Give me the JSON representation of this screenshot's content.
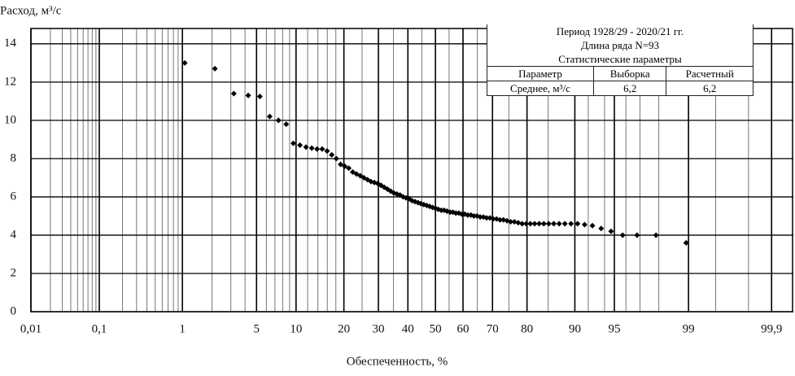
{
  "chart_data": {
    "type": "scatter",
    "ylabel": "Расход, м³/с",
    "xlabel": "Обеспеченность, %",
    "xscale": "probability",
    "xlim": [
      0.01,
      99.95
    ],
    "ylim": [
      0,
      14.8
    ],
    "xticks": [
      {
        "value": 0.01,
        "label": "0,01"
      },
      {
        "value": 0.1,
        "label": "0,1"
      },
      1,
      5,
      10,
      20,
      30,
      40,
      50,
      60,
      70,
      80,
      90,
      95,
      99,
      {
        "value": 99.9,
        "label": "99,9"
      }
    ],
    "xminor": [
      0.02,
      0.03,
      0.04,
      0.05,
      0.06,
      0.07,
      0.08,
      0.09,
      0.2,
      0.3,
      0.4,
      0.5,
      0.6,
      0.7,
      0.8,
      0.9,
      2,
      3,
      4,
      6,
      7,
      8,
      9,
      12,
      14,
      16,
      18,
      25,
      35,
      45,
      55,
      65,
      75,
      85,
      92,
      94,
      96,
      97,
      98,
      99.5,
      99.8
    ],
    "yticks": [
      0,
      2,
      4,
      6,
      8,
      10,
      12,
      14
    ],
    "grid": true,
    "color": "#000000",
    "x": [
      1.06,
      2.13,
      3.19,
      4.26,
      5.32,
      6.38,
      7.45,
      8.51,
      9.57,
      10.64,
      11.7,
      12.77,
      13.83,
      14.89,
      15.96,
      17.02,
      18.09,
      19.15,
      20.21,
      21.28,
      22.34,
      23.4,
      24.47,
      25.53,
      26.6,
      27.66,
      28.72,
      29.79,
      30.85,
      31.91,
      32.98,
      34.04,
      35.11,
      36.17,
      37.23,
      38.3,
      39.36,
      40.43,
      41.49,
      42.55,
      43.62,
      44.68,
      45.74,
      46.81,
      47.87,
      48.94,
      50.0,
      51.06,
      52.13,
      53.19,
      54.26,
      55.32,
      56.38,
      57.45,
      58.51,
      59.57,
      60.64,
      61.7,
      62.77,
      63.83,
      64.89,
      65.96,
      67.02,
      68.09,
      69.15,
      70.21,
      71.28,
      72.34,
      73.4,
      74.47,
      75.53,
      76.6,
      77.66,
      78.72,
      79.79,
      80.85,
      81.91,
      82.98,
      84.04,
      85.11,
      86.17,
      87.23,
      88.3,
      89.36,
      90.43,
      91.49,
      92.55,
      93.62,
      94.68,
      95.74,
      96.81,
      97.87,
      98.94
    ],
    "values": [
      13.0,
      12.7,
      11.4,
      11.3,
      11.25,
      10.2,
      10.0,
      9.8,
      8.8,
      8.7,
      8.6,
      8.55,
      8.5,
      8.5,
      8.4,
      8.2,
      8.0,
      7.7,
      7.6,
      7.5,
      7.3,
      7.2,
      7.1,
      7.0,
      6.9,
      6.8,
      6.75,
      6.7,
      6.6,
      6.5,
      6.4,
      6.3,
      6.2,
      6.15,
      6.1,
      6.0,
      5.95,
      5.9,
      5.8,
      5.75,
      5.7,
      5.65,
      5.6,
      5.55,
      5.5,
      5.45,
      5.4,
      5.35,
      5.3,
      5.3,
      5.25,
      5.2,
      5.2,
      5.15,
      5.15,
      5.1,
      5.1,
      5.05,
      5.05,
      5.0,
      5.0,
      4.95,
      4.95,
      4.9,
      4.9,
      4.85,
      4.85,
      4.8,
      4.8,
      4.75,
      4.7,
      4.7,
      4.65,
      4.6,
      4.6,
      4.6,
      4.6,
      4.6,
      4.6,
      4.6,
      4.6,
      4.6,
      4.6,
      4.6,
      4.6,
      4.55,
      4.5,
      4.35,
      4.2,
      4.0,
      4.0,
      4.0,
      3.6
    ],
    "stats_table": {
      "period": "Период 1928/29 - 2020/21 гг.",
      "length": "Длина ряда N=93",
      "caption": "Статистические параметры",
      "header": [
        "Параметр",
        "Выборка",
        "Расчетный"
      ],
      "rows": [
        [
          "Среднее, м³/с",
          "6,2",
          "6,2"
        ]
      ]
    }
  }
}
